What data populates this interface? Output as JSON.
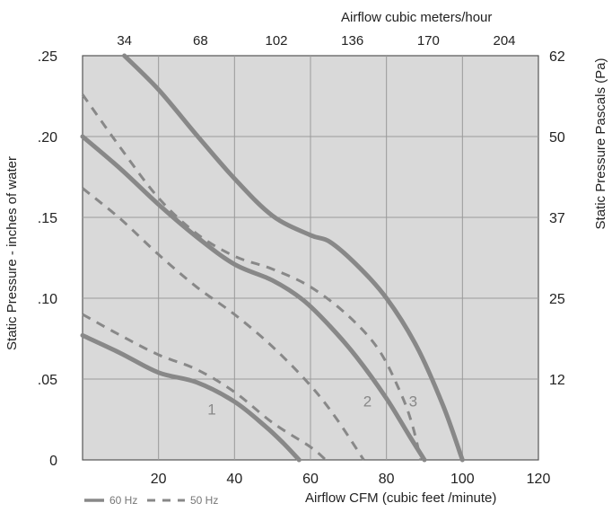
{
  "chart_data": {
    "type": "line",
    "xlabel_bottom": "Airflow  CFM (cubic feet /minute)",
    "xlabel_top": "Airflow cubic meters/hour",
    "ylabel_left": "Static Pressure - inches of water",
    "ylabel_right": "Static Pressure Pascals (Pa)",
    "xlim": [
      0,
      120
    ],
    "ylim": [
      0,
      0.25
    ],
    "x_ticks": [
      {
        "value": 20,
        "label": "20"
      },
      {
        "value": 40,
        "label": "40"
      },
      {
        "value": 60,
        "label": "60"
      },
      {
        "value": 80,
        "label": "80"
      },
      {
        "value": 100,
        "label": "100"
      },
      {
        "value": 120,
        "label": "120"
      }
    ],
    "x_top_ticks": [
      {
        "value": 20,
        "label": "34"
      },
      {
        "value": 40,
        "label": "68"
      },
      {
        "value": 60,
        "label": "102"
      },
      {
        "value": 80,
        "label": "136"
      },
      {
        "value": 100,
        "label": "170"
      },
      {
        "value": 120,
        "label": "204"
      }
    ],
    "y_ticks": [
      {
        "value": 0,
        "label": "0"
      },
      {
        "value": 0.05,
        "label": ".05"
      },
      {
        "value": 0.1,
        "label": ".10"
      },
      {
        "value": 0.15,
        "label": ".15"
      },
      {
        "value": 0.2,
        "label": ".20"
      },
      {
        "value": 0.25,
        "label": ".25"
      }
    ],
    "y_right_ticks": [
      {
        "value": 0.05,
        "label": "12"
      },
      {
        "value": 0.1,
        "label": "25"
      },
      {
        "value": 0.15,
        "label": "37"
      },
      {
        "value": 0.2,
        "label": "50"
      },
      {
        "value": 0.25,
        "label": "62"
      }
    ],
    "grid": true,
    "legend": {
      "position": "bottom-left",
      "items": [
        {
          "label": "60 Hz",
          "style": "solid"
        },
        {
          "label": "50 Hz",
          "style": "dashed"
        }
      ]
    },
    "curve_labels": [
      {
        "text": "1",
        "x": 34,
        "y": 0.028
      },
      {
        "text": "2",
        "x": 75,
        "y": 0.033
      },
      {
        "text": "3",
        "x": 87,
        "y": 0.033
      }
    ],
    "series": [
      {
        "style": "solid",
        "points": [
          [
            0,
            0.077
          ],
          [
            10,
            0.066
          ],
          [
            20,
            0.054
          ],
          [
            30,
            0.048
          ],
          [
            40,
            0.036
          ],
          [
            48,
            0.021
          ],
          [
            53,
            0.01
          ],
          [
            57,
            0
          ]
        ]
      },
      {
        "style": "dashed",
        "points": [
          [
            0,
            0.09
          ],
          [
            10,
            0.077
          ],
          [
            20,
            0.065
          ],
          [
            30,
            0.056
          ],
          [
            40,
            0.042
          ],
          [
            50,
            0.023
          ],
          [
            60,
            0.008
          ],
          [
            64,
            0
          ]
        ]
      },
      {
        "style": "solid",
        "points": [
          [
            0,
            0.2
          ],
          [
            10,
            0.18
          ],
          [
            20,
            0.158
          ],
          [
            30,
            0.138
          ],
          [
            40,
            0.121
          ],
          [
            50,
            0.111
          ],
          [
            58,
            0.099
          ],
          [
            65,
            0.083
          ],
          [
            72,
            0.064
          ],
          [
            80,
            0.038
          ],
          [
            86,
            0.015
          ],
          [
            90,
            0
          ]
        ]
      },
      {
        "style": "dashed",
        "points": [
          [
            0,
            0.168
          ],
          [
            10,
            0.149
          ],
          [
            20,
            0.127
          ],
          [
            30,
            0.107
          ],
          [
            40,
            0.09
          ],
          [
            50,
            0.07
          ],
          [
            60,
            0.046
          ],
          [
            67,
            0.025
          ],
          [
            74,
            0
          ]
        ]
      },
      {
        "style": "dashed",
        "points": [
          [
            0,
            0.226
          ],
          [
            10,
            0.193
          ],
          [
            20,
            0.162
          ],
          [
            30,
            0.14
          ],
          [
            40,
            0.126
          ],
          [
            50,
            0.118
          ],
          [
            60,
            0.107
          ],
          [
            70,
            0.089
          ],
          [
            78,
            0.068
          ],
          [
            84,
            0.04
          ],
          [
            87,
            0.02
          ],
          [
            89,
            0
          ]
        ]
      },
      {
        "style": "solid",
        "points": [
          [
            11,
            0.25
          ],
          [
            20,
            0.229
          ],
          [
            30,
            0.201
          ],
          [
            40,
            0.174
          ],
          [
            50,
            0.151
          ],
          [
            60,
            0.139
          ],
          [
            65,
            0.135
          ],
          [
            72,
            0.121
          ],
          [
            80,
            0.1
          ],
          [
            88,
            0.07
          ],
          [
            95,
            0.033
          ],
          [
            100,
            0
          ]
        ]
      }
    ]
  }
}
